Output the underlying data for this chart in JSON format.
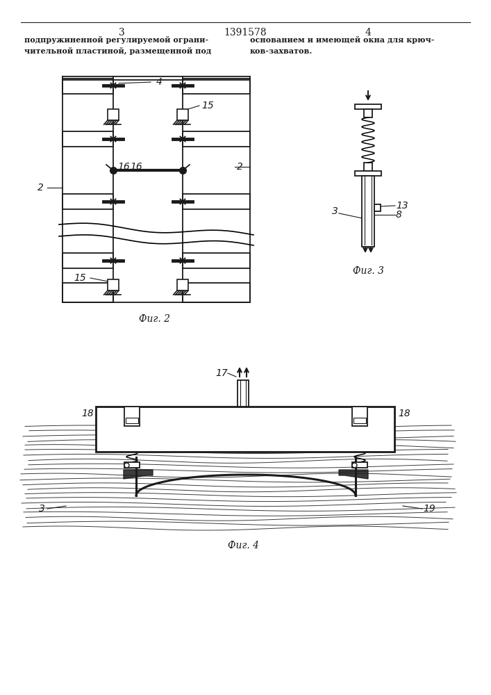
{
  "bg_color": "#ffffff",
  "line_color": "#1a1a1a",
  "page_number_left": "3",
  "page_number_center": "1391578",
  "page_number_right": "4",
  "text_left": [
    "подпружиненной регулируемой ограни-",
    "чительной пластиной, размещенной под"
  ],
  "text_right": [
    "основанием и имеющей окна для крюч-",
    "ков-захватов."
  ],
  "fig2_caption": "Фиг. 2",
  "fig3_caption": "Фиг. 3",
  "fig4_caption": "Фиг. 4"
}
